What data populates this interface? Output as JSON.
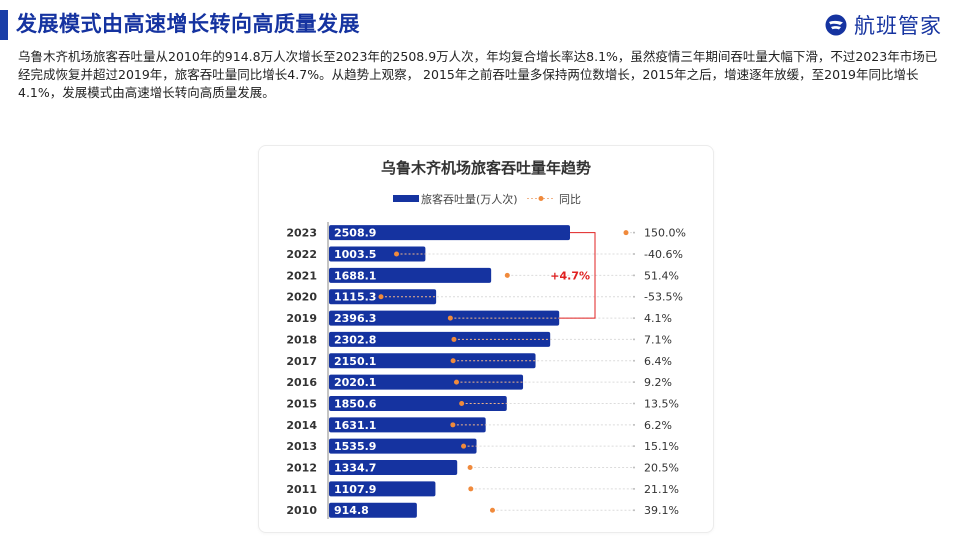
{
  "header": {
    "title": "发展模式由高速增长转向高质量发展",
    "brand": "航班管家"
  },
  "description": "乌鲁木齐机场旅客吞吐量从2010年的914.8万人次增长至2023年的2508.9万人次，年均复合增长率达8.1%，虽然疫情三年期间吞吐量大幅下滑，不过2023年市场已经完成恢复并超过2019年，旅客吞吐量同比增长4.7%。从趋势上观察， 2015年之前吞吐量多保持两位数增长，2015年之后，增速逐年放缓，至2019年同比增长4.1%，发展模式由高速增长转向高质量发展。",
  "colors": {
    "bar": "#1533a0",
    "dot": "#f08a3c",
    "annotation": "#e02020",
    "brand": "#1533a0"
  },
  "chart_data": {
    "type": "bar",
    "orientation": "horizontal",
    "title": "乌鲁木齐机场旅客吞吐量年趋势",
    "categories": [
      "2023",
      "2022",
      "2021",
      "2020",
      "2019",
      "2018",
      "2017",
      "2016",
      "2015",
      "2014",
      "2013",
      "2012",
      "2011",
      "2010"
    ],
    "series": [
      {
        "name": "旅客吞吐量(万人次)",
        "type": "bar",
        "values": [
          2508.9,
          1003.5,
          1688.1,
          1115.3,
          2396.3,
          2302.8,
          2150.1,
          2020.1,
          1850.6,
          1631.1,
          1535.9,
          1334.7,
          1107.9,
          914.8
        ]
      },
      {
        "name": "同比",
        "type": "scatter",
        "values": [
          150.0,
          -40.6,
          51.4,
          -53.5,
          4.1,
          7.1,
          6.4,
          9.2,
          13.5,
          6.2,
          15.1,
          20.5,
          21.1,
          39.1
        ],
        "labels": [
          "150.0%",
          "-40.6%",
          "51.4%",
          "-53.5%",
          "4.1%",
          "7.1%",
          "6.4%",
          "9.2%",
          "13.5%",
          "6.2%",
          "15.1%",
          "20.5%",
          "21.1%",
          "39.1%"
        ]
      }
    ],
    "annotation": {
      "text": "+4.7%",
      "from": "2019",
      "to": "2023"
    },
    "legend_position": "top",
    "grid": false
  }
}
